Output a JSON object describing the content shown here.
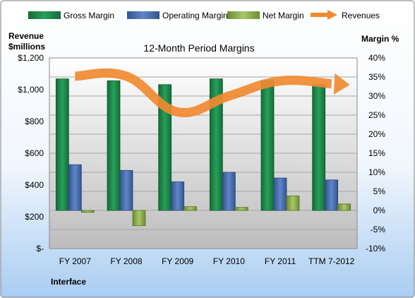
{
  "chart_data": {
    "type": "bar",
    "title": "12-Month Period Margins",
    "left_axis_title": [
      "Revenue",
      "$millions"
    ],
    "right_axis_title": "Margin %",
    "company": "Interface",
    "categories": [
      "FY 2007",
      "FY 2008",
      "FY 2009",
      "FY 2010",
      "FY 2011",
      "TTM 7-2012"
    ],
    "left_ticks": [
      "$1,200",
      "$1,000",
      "$800",
      "$600",
      "$400",
      "$200",
      "$-"
    ],
    "right_ticks": [
      "40%",
      "35%",
      "30%",
      "25%",
      "20%",
      "15%",
      "10%",
      "5%",
      "0%",
      "-5%",
      "-10%"
    ],
    "ylim_left": [
      0,
      1200
    ],
    "ylim_right": [
      -10,
      40
    ],
    "grid": true,
    "legend_position": "top",
    "series": [
      {
        "name": "Gross Margin",
        "axis": "right",
        "color": "#1e8a4a",
        "values": [
          34.5,
          34.0,
          33.0,
          34.5,
          34.0,
          33.0
        ]
      },
      {
        "name": "Operating Margin",
        "axis": "right",
        "color": "#4a6fb0",
        "values": [
          12.0,
          10.5,
          7.5,
          10.0,
          8.5,
          8.0
        ]
      },
      {
        "name": "Net Margin",
        "axis": "right",
        "color": "#8fb04a",
        "values": [
          -0.5,
          -4.0,
          1.0,
          0.8,
          3.8,
          1.7
        ]
      },
      {
        "name": "Revenues",
        "axis": "left",
        "type": "line",
        "color": "#f08a30",
        "values": [
          1085,
          1085,
          860,
          960,
          1055,
          1037
        ]
      }
    ]
  }
}
